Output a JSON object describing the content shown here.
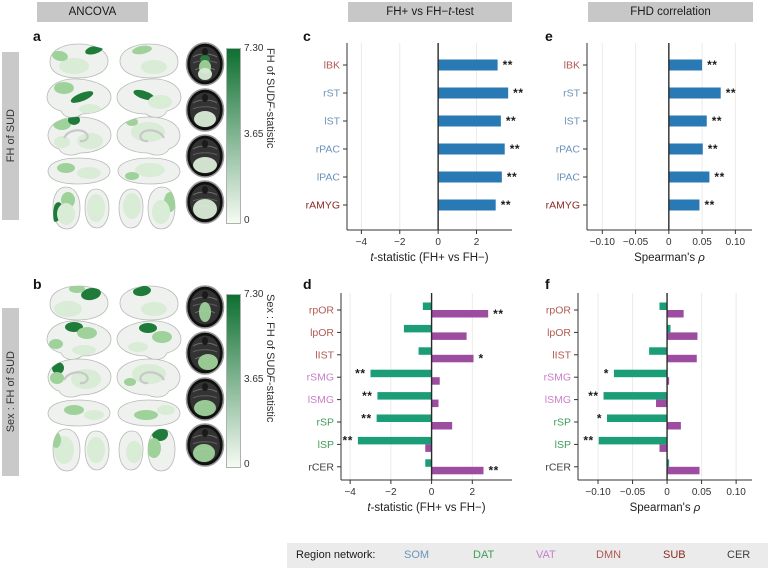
{
  "headers": [
    {
      "id": "ancova",
      "label_parts": [
        {
          "text": "ANCOVA"
        }
      ]
    },
    {
      "id": "ttest",
      "label_parts": [
        {
          "text": "FH+ vs FH− "
        },
        {
          "text": "t",
          "italic": true
        },
        {
          "text": "-test"
        }
      ]
    },
    {
      "id": "fhd",
      "label_parts": [
        {
          "text": "FHD correlation"
        }
      ]
    }
  ],
  "panels": {
    "a": {
      "letter": "a",
      "side_label": "FH of SUD",
      "colorbar": {
        "max": "7.30",
        "mid": "3.65",
        "min": "0",
        "title_parts": [
          {
            "text": "FH of SUD "
          },
          {
            "text": "F",
            "italic": true
          },
          {
            "text": "-statistic"
          }
        ]
      }
    },
    "b": {
      "letter": "b",
      "side_label": "Sex : FH of SUD",
      "colorbar": {
        "max": "7.30",
        "mid": "3.65",
        "min": "0",
        "title_parts": [
          {
            "text": "Sex : FH of SUD "
          },
          {
            "text": "F",
            "italic": true
          },
          {
            "text": "-statistic"
          }
        ]
      }
    },
    "c": {
      "letter": "c"
    },
    "d": {
      "letter": "d"
    },
    "e": {
      "letter": "e"
    },
    "f": {
      "letter": "f"
    }
  },
  "chart_data": [
    {
      "id": "c",
      "type": "bar",
      "orientation": "horizontal",
      "categories": [
        "lBK",
        "rST",
        "lST",
        "rPAC",
        "lPAC",
        "rAMYG"
      ],
      "category_networks": [
        "DMN",
        "SOM",
        "SOM",
        "SOM",
        "SOM",
        "SUB"
      ],
      "values": [
        3.1,
        3.65,
        3.27,
        3.47,
        3.32,
        3.0
      ],
      "sig": [
        "**",
        "**",
        "**",
        "**",
        "**",
        "**"
      ],
      "bar_color_key": "bar_blue",
      "xticks": [
        {
          "v": -4,
          "label": "−4"
        },
        {
          "v": -2,
          "label": "−2"
        },
        {
          "v": 0,
          "label": "0"
        },
        {
          "v": 2,
          "label": "2"
        }
      ],
      "xlim": [
        -4.75,
        3.85
      ],
      "xlabel_parts": [
        {
          "text": "t",
          "italic": true
        },
        {
          "text": "-statistic (FH+ vs FH−)"
        }
      ],
      "grid": true,
      "zero_line": true
    },
    {
      "id": "e",
      "type": "bar",
      "orientation": "horizontal",
      "categories": [
        "lBK",
        "rST",
        "lST",
        "rPAC",
        "lPAC",
        "rAMYG"
      ],
      "category_networks": [
        "DMN",
        "SOM",
        "SOM",
        "SOM",
        "SOM",
        "SUB"
      ],
      "values": [
        0.05,
        0.078,
        0.057,
        0.051,
        0.061,
        0.046
      ],
      "sig": [
        "**",
        "**",
        "**",
        "**",
        "**",
        "**"
      ],
      "bar_color_key": "bar_blue",
      "xticks": [
        {
          "v": -0.1,
          "label": "−0.10"
        },
        {
          "v": -0.05,
          "label": "−0.05"
        },
        {
          "v": 0,
          "label": "0"
        },
        {
          "v": 0.05,
          "label": "0.05"
        },
        {
          "v": 0.1,
          "label": "0.10"
        }
      ],
      "xlim": [
        -0.123,
        0.125
      ],
      "xlabel_parts": [
        {
          "text": "Spearman's "
        },
        {
          "text": "ρ",
          "italic": true
        }
      ],
      "grid": true,
      "zero_line": true
    },
    {
      "id": "d",
      "type": "bar",
      "orientation": "horizontal",
      "categories": [
        "rpOR",
        "lpOR",
        "lIST",
        "rSMG",
        "lSMG",
        "rSP",
        "lSP",
        "rCER"
      ],
      "category_networks": [
        "DMN",
        "DMN",
        "DMN",
        "VAT",
        "VAT",
        "DAT",
        "DAT",
        "CER"
      ],
      "series": [
        {
          "name": "green",
          "color_key": "bar_green",
          "values": [
            -0.43,
            -1.36,
            -0.64,
            -3.0,
            -2.66,
            -2.7,
            -3.62,
            -0.31
          ],
          "sig": [
            null,
            null,
            null,
            "**",
            "**",
            "**",
            "**",
            null
          ]
        },
        {
          "name": "purple",
          "color_key": "bar_purple",
          "values": [
            2.78,
            1.72,
            2.06,
            0.4,
            0.34,
            1.01,
            -0.31,
            2.55
          ],
          "sig": [
            "**",
            null,
            "*",
            null,
            null,
            null,
            null,
            "**"
          ]
        }
      ],
      "xticks": [
        {
          "v": -4,
          "label": "−4"
        },
        {
          "v": -2,
          "label": "−2"
        },
        {
          "v": 0,
          "label": "0"
        },
        {
          "v": 2,
          "label": "2"
        }
      ],
      "xlim": [
        -4.45,
        3.95
      ],
      "xlabel_parts": [
        {
          "text": "t",
          "italic": true
        },
        {
          "text": "-statistic (FH+ vs FH−)"
        }
      ],
      "grid": true,
      "zero_line": true
    },
    {
      "id": "f",
      "type": "bar",
      "orientation": "horizontal",
      "categories": [
        "rpOR",
        "lpOR",
        "lIST",
        "rSMG",
        "lSMG",
        "rSP",
        "lSP",
        "rCER"
      ],
      "category_networks": [
        "DMN",
        "DMN",
        "DMN",
        "VAT",
        "VAT",
        "DAT",
        "DAT",
        "CER"
      ],
      "series": [
        {
          "name": "green",
          "color_key": "bar_green",
          "values": [
            -0.011,
            0.005,
            -0.026,
            -0.077,
            -0.092,
            -0.087,
            -0.099,
            0.003
          ],
          "sig": [
            null,
            null,
            null,
            "*",
            "**",
            "*",
            "**",
            null
          ]
        },
        {
          "name": "purple",
          "color_key": "bar_purple",
          "values": [
            0.024,
            0.044,
            0.043,
            0.003,
            -0.016,
            0.02,
            -0.011,
            0.047
          ],
          "sig": [
            null,
            null,
            null,
            null,
            null,
            null,
            null,
            null
          ]
        }
      ],
      "xticks": [
        {
          "v": -0.1,
          "label": "−0.10"
        },
        {
          "v": -0.05,
          "label": "−0.05"
        },
        {
          "v": 0,
          "label": "0"
        },
        {
          "v": 0.05,
          "label": "0.05"
        },
        {
          "v": 0.1,
          "label": "0.10"
        }
      ],
      "xlim": [
        -0.129,
        0.123
      ],
      "xlabel_parts": [
        {
          "text": "Spearman's "
        },
        {
          "text": "ρ",
          "italic": true
        }
      ],
      "grid": true,
      "zero_line": true
    }
  ],
  "legend": {
    "title": "Region network:",
    "items": [
      {
        "label": "SOM",
        "network": "SOM"
      },
      {
        "label": "DAT",
        "network": "DAT"
      },
      {
        "label": "VAT",
        "network": "VAT"
      },
      {
        "label": "DMN",
        "network": "DMN"
      },
      {
        "label": "SUB",
        "network": "SUB"
      },
      {
        "label": "CER",
        "network": "CER"
      }
    ]
  },
  "colors": {
    "bar_blue": "#2979b5",
    "bar_green": "#1b9e77",
    "bar_purple": "#9c4da0",
    "network": {
      "SOM": "#6b93bb",
      "DAT": "#3f9d5b",
      "VAT": "#c97fc9",
      "DMN": "#b15a52",
      "SUB": "#8a2a24",
      "CER": "#3e3f40"
    },
    "colorbar_top": "#0e6f30",
    "colorbar_bottom": "#f6fbf4",
    "header_bg": "#c7c7c7",
    "legend_bg": "#ebebeb"
  }
}
